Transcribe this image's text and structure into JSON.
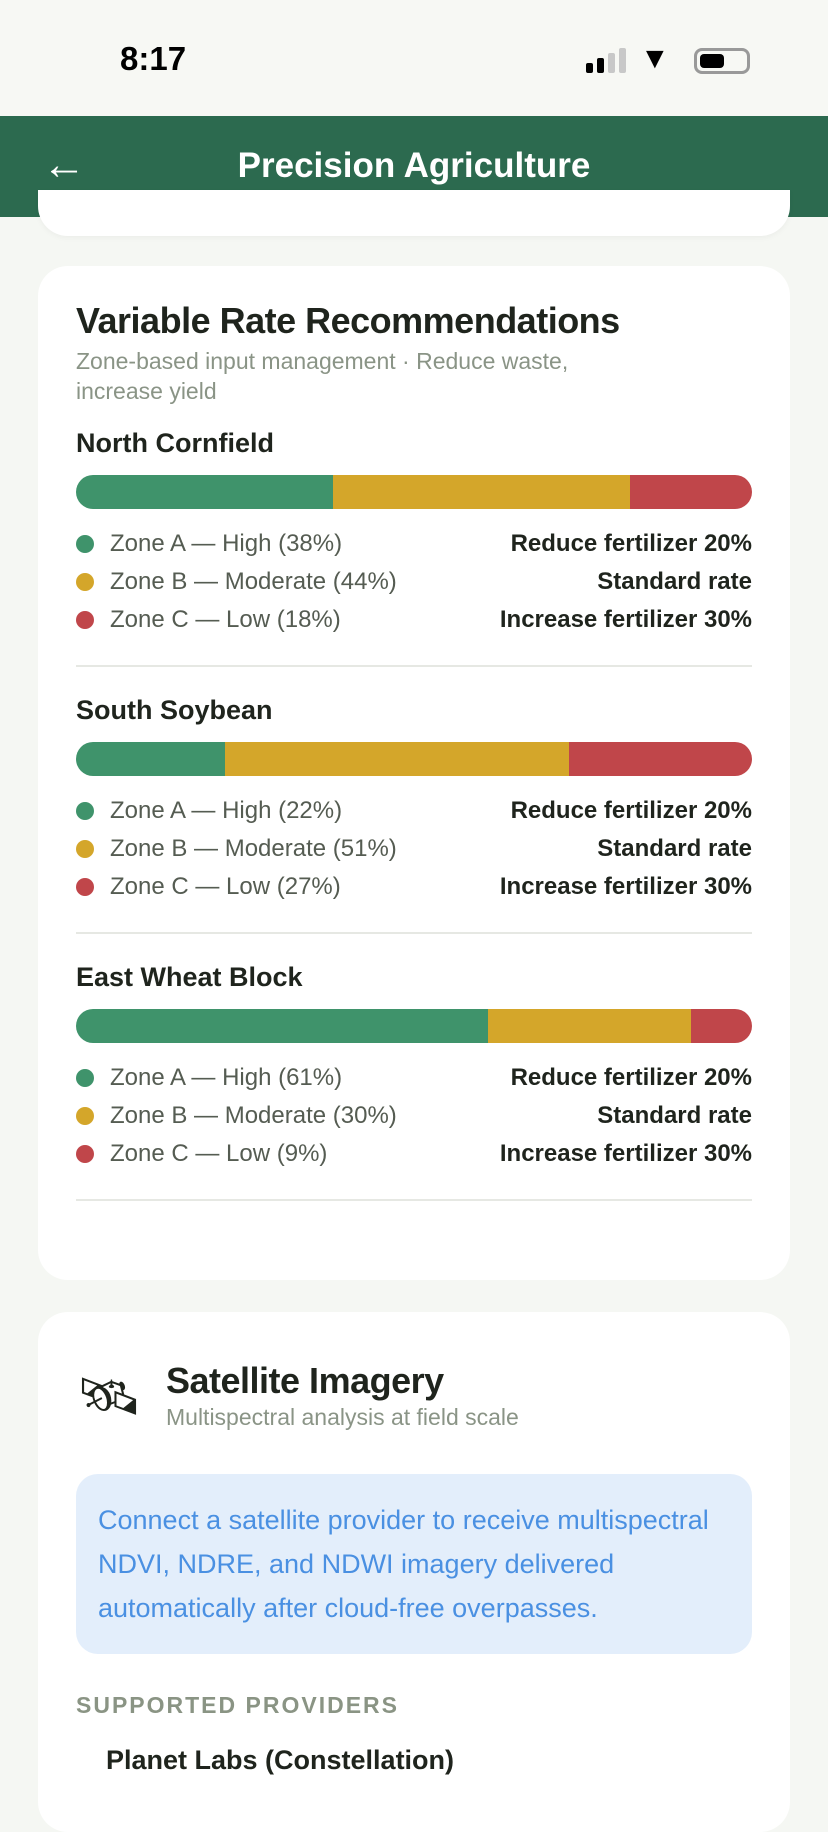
{
  "status_bar": {
    "time": "8:17"
  },
  "header": {
    "title": "Precision Agriculture",
    "back_icon": "arrow-left-icon"
  },
  "colors": {
    "zone_a": "#3f936b",
    "zone_b": "#d4a62a",
    "zone_c": "#c0464a",
    "header": "#2c6a4f",
    "info_text": "#4a90e2",
    "info_bg": "#e3eefb"
  },
  "variable_rate": {
    "title": "Variable Rate Recommendations",
    "subtitle": "Zone-based input management · Reduce waste, increase yield",
    "fields": [
      {
        "name": "North Cornfield",
        "zones": [
          {
            "label": "Zone A — High (38%)",
            "pct": 38,
            "action": "Reduce fertilizer 20%"
          },
          {
            "label": "Zone B — Moderate (44%)",
            "pct": 44,
            "action": "Standard rate"
          },
          {
            "label": "Zone C — Low (18%)",
            "pct": 18,
            "action": "Increase fertilizer 30%"
          }
        ]
      },
      {
        "name": "South Soybean",
        "zones": [
          {
            "label": "Zone A — High (22%)",
            "pct": 22,
            "action": "Reduce fertilizer 20%"
          },
          {
            "label": "Zone B — Moderate (51%)",
            "pct": 51,
            "action": "Standard rate"
          },
          {
            "label": "Zone C — Low (27%)",
            "pct": 27,
            "action": "Increase fertilizer 30%"
          }
        ]
      },
      {
        "name": "East Wheat Block",
        "zones": [
          {
            "label": "Zone A — High (61%)",
            "pct": 61,
            "action": "Reduce fertilizer 20%"
          },
          {
            "label": "Zone B — Moderate (30%)",
            "pct": 30,
            "action": "Standard rate"
          },
          {
            "label": "Zone C — Low (9%)",
            "pct": 9,
            "action": "Increase fertilizer 30%"
          }
        ]
      }
    ]
  },
  "satellite": {
    "icon": "satellite-icon",
    "title": "Satellite Imagery",
    "subtitle": "Multispectral analysis at field scale",
    "info": "Connect a satellite provider to receive multispectral NDVI, NDRE, and NDWI imagery delivered automatically after cloud-free overpasses.",
    "providers_heading": "SUPPORTED PROVIDERS",
    "providers": [
      "Planet Labs (Constellation)"
    ]
  }
}
